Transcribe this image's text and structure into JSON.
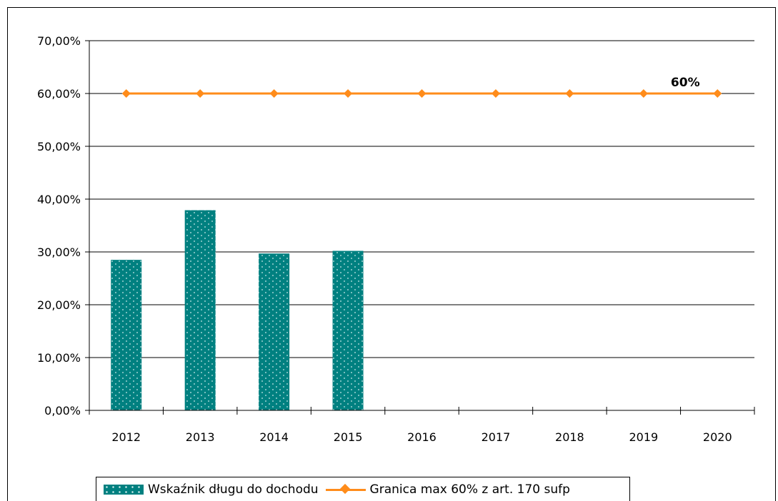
{
  "chart_data": {
    "type": "bar+line",
    "categories": [
      "2012",
      "2013",
      "2014",
      "2015",
      "2016",
      "2017",
      "2018",
      "2019",
      "2020"
    ],
    "series": [
      {
        "name": "Wskaźnik długu do dochodu",
        "type": "bar",
        "color": "#008080",
        "pattern": "dotted",
        "values": [
          28.5,
          37.9,
          29.7,
          30.2,
          null,
          null,
          null,
          null,
          null
        ]
      },
      {
        "name": "Granica max 60% z art. 170 sufp",
        "type": "line",
        "color": "#ff8c1a",
        "marker": "diamond",
        "values": [
          60,
          60,
          60,
          60,
          60,
          60,
          60,
          60,
          60
        ]
      }
    ],
    "ylim": [
      0,
      70
    ],
    "yticks": [
      0,
      10,
      20,
      30,
      40,
      50,
      60,
      70
    ],
    "ytick_labels": [
      "0,00%",
      "10,00%",
      "20,00%",
      "30,00%",
      "40,00%",
      "50,00%",
      "60,00%",
      "70,00%"
    ],
    "grid": true,
    "legend_position": "bottom",
    "annotations": [
      {
        "text": "60%",
        "category": "2020",
        "value": 60
      }
    ]
  }
}
